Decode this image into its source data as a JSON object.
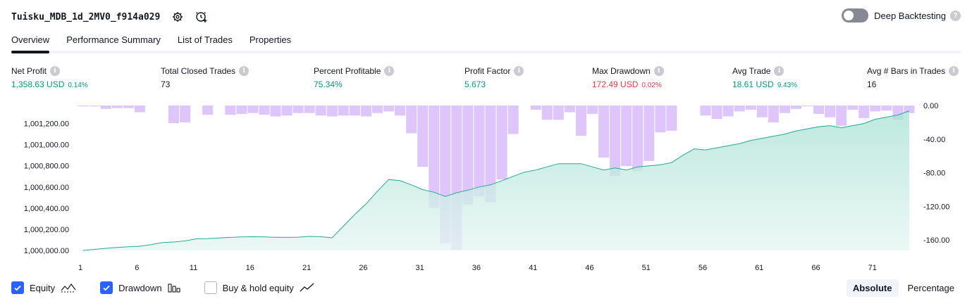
{
  "header": {
    "strategy_name": "Tuisku_MDB_1d_2MV0_f914a029",
    "deep_backtesting_label": "Deep Backtesting",
    "deep_backtesting_on": false,
    "help_glyph": "?"
  },
  "tabs": [
    {
      "label": "Overview",
      "active": true
    },
    {
      "label": "Performance Summary",
      "active": false
    },
    {
      "label": "List of Trades",
      "active": false
    },
    {
      "label": "Properties",
      "active": false
    }
  ],
  "metrics": [
    {
      "label": "Net Profit",
      "value": "1,358.63 USD",
      "pct": "0.14%",
      "color": "#089981"
    },
    {
      "label": "Total Closed Trades",
      "value": "73",
      "pct": "",
      "color": "#131722"
    },
    {
      "label": "Percent Profitable",
      "value": "75.34%",
      "pct": "",
      "color": "#089981"
    },
    {
      "label": "Profit Factor",
      "value": "5.673",
      "pct": "",
      "color": "#089981"
    },
    {
      "label": "Max Drawdown",
      "value": "172.49 USD",
      "pct": "0.02%",
      "color": "#f23645"
    },
    {
      "label": "Avg Trade",
      "value": "18.61 USD",
      "pct": "9.43%",
      "color": "#089981"
    },
    {
      "label": "Avg # Bars in Trades",
      "value": "16",
      "pct": "",
      "color": "#131722"
    }
  ],
  "chart_data": {
    "type": "area",
    "x": [
      1,
      2,
      3,
      4,
      5,
      6,
      7,
      8,
      9,
      10,
      11,
      12,
      13,
      14,
      15,
      16,
      17,
      18,
      19,
      20,
      21,
      22,
      23,
      24,
      25,
      26,
      27,
      28,
      29,
      30,
      31,
      32,
      33,
      34,
      35,
      36,
      37,
      38,
      39,
      40,
      41,
      42,
      43,
      44,
      45,
      46,
      47,
      48,
      49,
      50,
      51,
      52,
      53,
      54,
      55,
      56,
      57,
      58,
      59,
      60,
      61,
      62,
      63,
      64,
      65,
      66,
      67,
      68,
      69,
      70,
      71,
      72,
      73,
      74
    ],
    "xticks": [
      "1",
      "6",
      "11",
      "16",
      "21",
      "26",
      "31",
      "36",
      "41",
      "46",
      "51",
      "56",
      "61",
      "66",
      "71"
    ],
    "equity_yticks": [
      "1,000,000.00",
      "1,000,200.00",
      "1,000,400.00",
      "1,000,600.00",
      "1,000,800.00",
      "1,001,000.00",
      "1,001,200.00"
    ],
    "drawdown_yticks": [
      "0.00",
      "-40.00",
      "-80.00",
      "-120.00",
      "-160.00"
    ],
    "equity_ylim": [
      1000000,
      1001330
    ],
    "drawdown_ylim": [
      -172.49,
      0
    ],
    "series": [
      {
        "name": "Equity",
        "color": "#22ab94",
        "values": [
          1000000,
          1000010,
          1000020,
          1000028,
          1000035,
          1000040,
          1000055,
          1000075,
          1000080,
          1000090,
          1000110,
          1000112,
          1000118,
          1000124,
          1000128,
          1000130,
          1000128,
          1000125,
          1000124,
          1000126,
          1000133,
          1000130,
          1000120,
          1000230,
          1000340,
          1000440,
          1000560,
          1000670,
          1000660,
          1000620,
          1000575,
          1000550,
          1000510,
          1000545,
          1000570,
          1000600,
          1000620,
          1000660,
          1000700,
          1000740,
          1000760,
          1000790,
          1000820,
          1000820,
          1000820,
          1000790,
          1000760,
          1000780,
          1000760,
          1000790,
          1000800,
          1000810,
          1000830,
          1000900,
          1000960,
          1000950,
          1000970,
          1000990,
          1001010,
          1001040,
          1001060,
          1001080,
          1001100,
          1001130,
          1001150,
          1001170,
          1001180,
          1001160,
          1001180,
          1001200,
          1001240,
          1001260,
          1001280,
          1001320
        ]
      },
      {
        "name": "Drawdown",
        "color": "#d1b3fa",
        "values": [
          -1,
          -1,
          -4,
          -3,
          -3,
          -8,
          0,
          0,
          -21,
          -20,
          0,
          -11,
          0,
          -11,
          -10,
          -9,
          -11,
          -13,
          -12,
          -9,
          -9,
          -12,
          -13,
          -12,
          -12,
          -13,
          -9,
          -7,
          -12,
          -33,
          -73,
          -122,
          -164,
          -172,
          -118,
          -108,
          -115,
          -88,
          -34,
          0,
          -5,
          -17,
          -17,
          -8,
          -36,
          -10,
          -62,
          -84,
          -72,
          -78,
          -66,
          -32,
          -30,
          0,
          0,
          -12,
          -16,
          -13,
          -7,
          -5,
          -14,
          -20,
          -9,
          -4,
          -1,
          -10,
          -14,
          -24,
          -5,
          -15,
          -7,
          -6,
          -17,
          -9
        ]
      }
    ]
  },
  "legend": {
    "equity_label": "Equity",
    "equity_checked": true,
    "drawdown_label": "Drawdown",
    "drawdown_checked": true,
    "buyhold_label": "Buy & hold equity",
    "buyhold_checked": false
  },
  "mode": {
    "absolute_label": "Absolute",
    "percentage_label": "Percentage",
    "active": "Absolute"
  },
  "colors": {
    "accent": "#2962ff",
    "profit": "#089981",
    "loss": "#f23645",
    "equity_fill": "#c4ebe1",
    "drawdown_bar": "#dcc3fb"
  },
  "icons": [
    "gear-icon",
    "alert-add-icon",
    "help-icon",
    "info-icon",
    "checkmark-icon",
    "equity-line-icon",
    "drawdown-bars-icon",
    "buyhold-line-icon"
  ]
}
